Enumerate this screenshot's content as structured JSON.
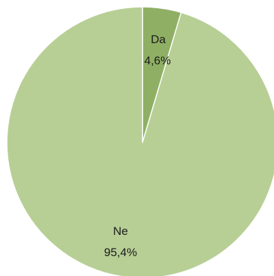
{
  "chart_data": {
    "type": "pie",
    "slices": [
      {
        "category": "Da",
        "value": 4.6,
        "label": "4,6%",
        "color": "#8fb064"
      },
      {
        "category": "Ne",
        "value": 95.4,
        "label": "95,4%",
        "color": "#b7cf95"
      }
    ],
    "start_angle_deg": 0,
    "direction": "clockwise",
    "border_color": "#ffffff"
  }
}
